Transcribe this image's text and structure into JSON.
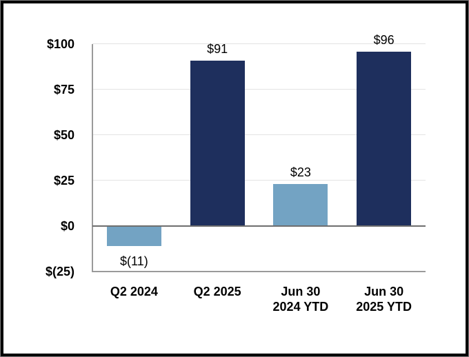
{
  "chart_data": {
    "type": "bar",
    "title": "",
    "categories": [
      "Q2 2024",
      "Q2 2025",
      "Jun 30 2024 YTD",
      "Jun 30 2025 YTD"
    ],
    "category_label_lines": [
      [
        "Q2 2024"
      ],
      [
        "Q2 2025"
      ],
      [
        "Jun 30",
        "2024 YTD"
      ],
      [
        "Jun 30",
        "2025 YTD"
      ]
    ],
    "values": [
      -11,
      91,
      23,
      96
    ],
    "data_labels": [
      "$(11)",
      "$91",
      "$23",
      "$96"
    ],
    "bar_colors": [
      "#73A3C3",
      "#1E2F5D",
      "#73A3C3",
      "#1E2F5D"
    ],
    "xlabel": "",
    "ylabel": "",
    "ylim": [
      -25,
      100
    ],
    "yticks": [
      100,
      75,
      50,
      25,
      0,
      -25
    ],
    "ytick_labels": [
      "$100",
      "$75",
      "$50",
      "$25",
      "$0",
      "$(25)"
    ],
    "grid": "horizontal-light-gray",
    "legend": "none",
    "zero_line": true
  },
  "colors": {
    "bar_dark_navy": "#1E2F5D",
    "bar_light_blue": "#73A3C3",
    "gridline": "#E3E3E3",
    "zero_line": "#6E6E6E",
    "axis_line": "#9A9A9A",
    "text": "#000000",
    "frame_border": "#000000",
    "frame_edge": "#7F7F7F",
    "background": "#FFFFFF"
  }
}
